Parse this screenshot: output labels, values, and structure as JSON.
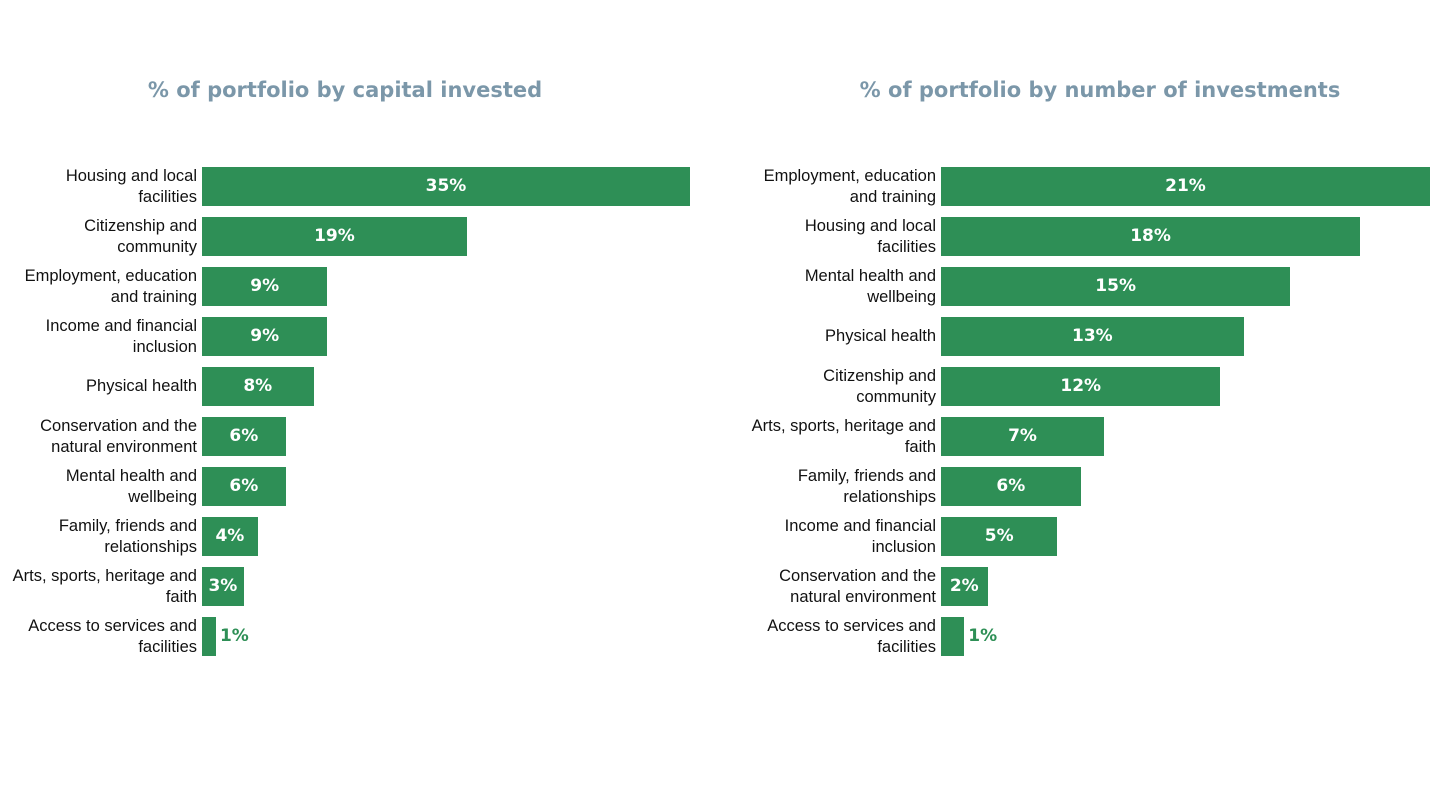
{
  "chart_data": [
    {
      "type": "barh",
      "title": "% of portfolio by capital invested",
      "color": "#2e8f56",
      "categories": [
        "Housing and local facilities",
        "Citizenship and community",
        "Employment, education and training",
        "Income and financial inclusion",
        "Physical health",
        "Conservation and the natural environment",
        "Mental health and wellbeing",
        "Family, friends and relationships",
        "Arts, sports, heritage and faith",
        "Access to services and facilities"
      ],
      "values": [
        35,
        19,
        9,
        9,
        8,
        6,
        6,
        4,
        3,
        1
      ],
      "value_labels": [
        "35%",
        "19%",
        "9%",
        "9%",
        "8%",
        "6%",
        "6%",
        "4%",
        "3%",
        "1%"
      ]
    },
    {
      "type": "barh",
      "title": "% of portfolio by number of investments",
      "color": "#2e8f56",
      "categories": [
        "Employment, education and training",
        "Housing and local facilities",
        "Mental health and wellbeing",
        "Physical health",
        "Citizenship and community",
        "Arts, sports, heritage and faith",
        "Family, friends and relationships",
        "Income and financial inclusion",
        "Conservation and the natural environment",
        "Access to services and facilities"
      ],
      "values": [
        21,
        18,
        15,
        13,
        12,
        7,
        6,
        5,
        2,
        1
      ],
      "value_labels": [
        "21%",
        "18%",
        "15%",
        "13%",
        "12%",
        "7%",
        "6%",
        "5%",
        "2%",
        "1%"
      ]
    }
  ]
}
